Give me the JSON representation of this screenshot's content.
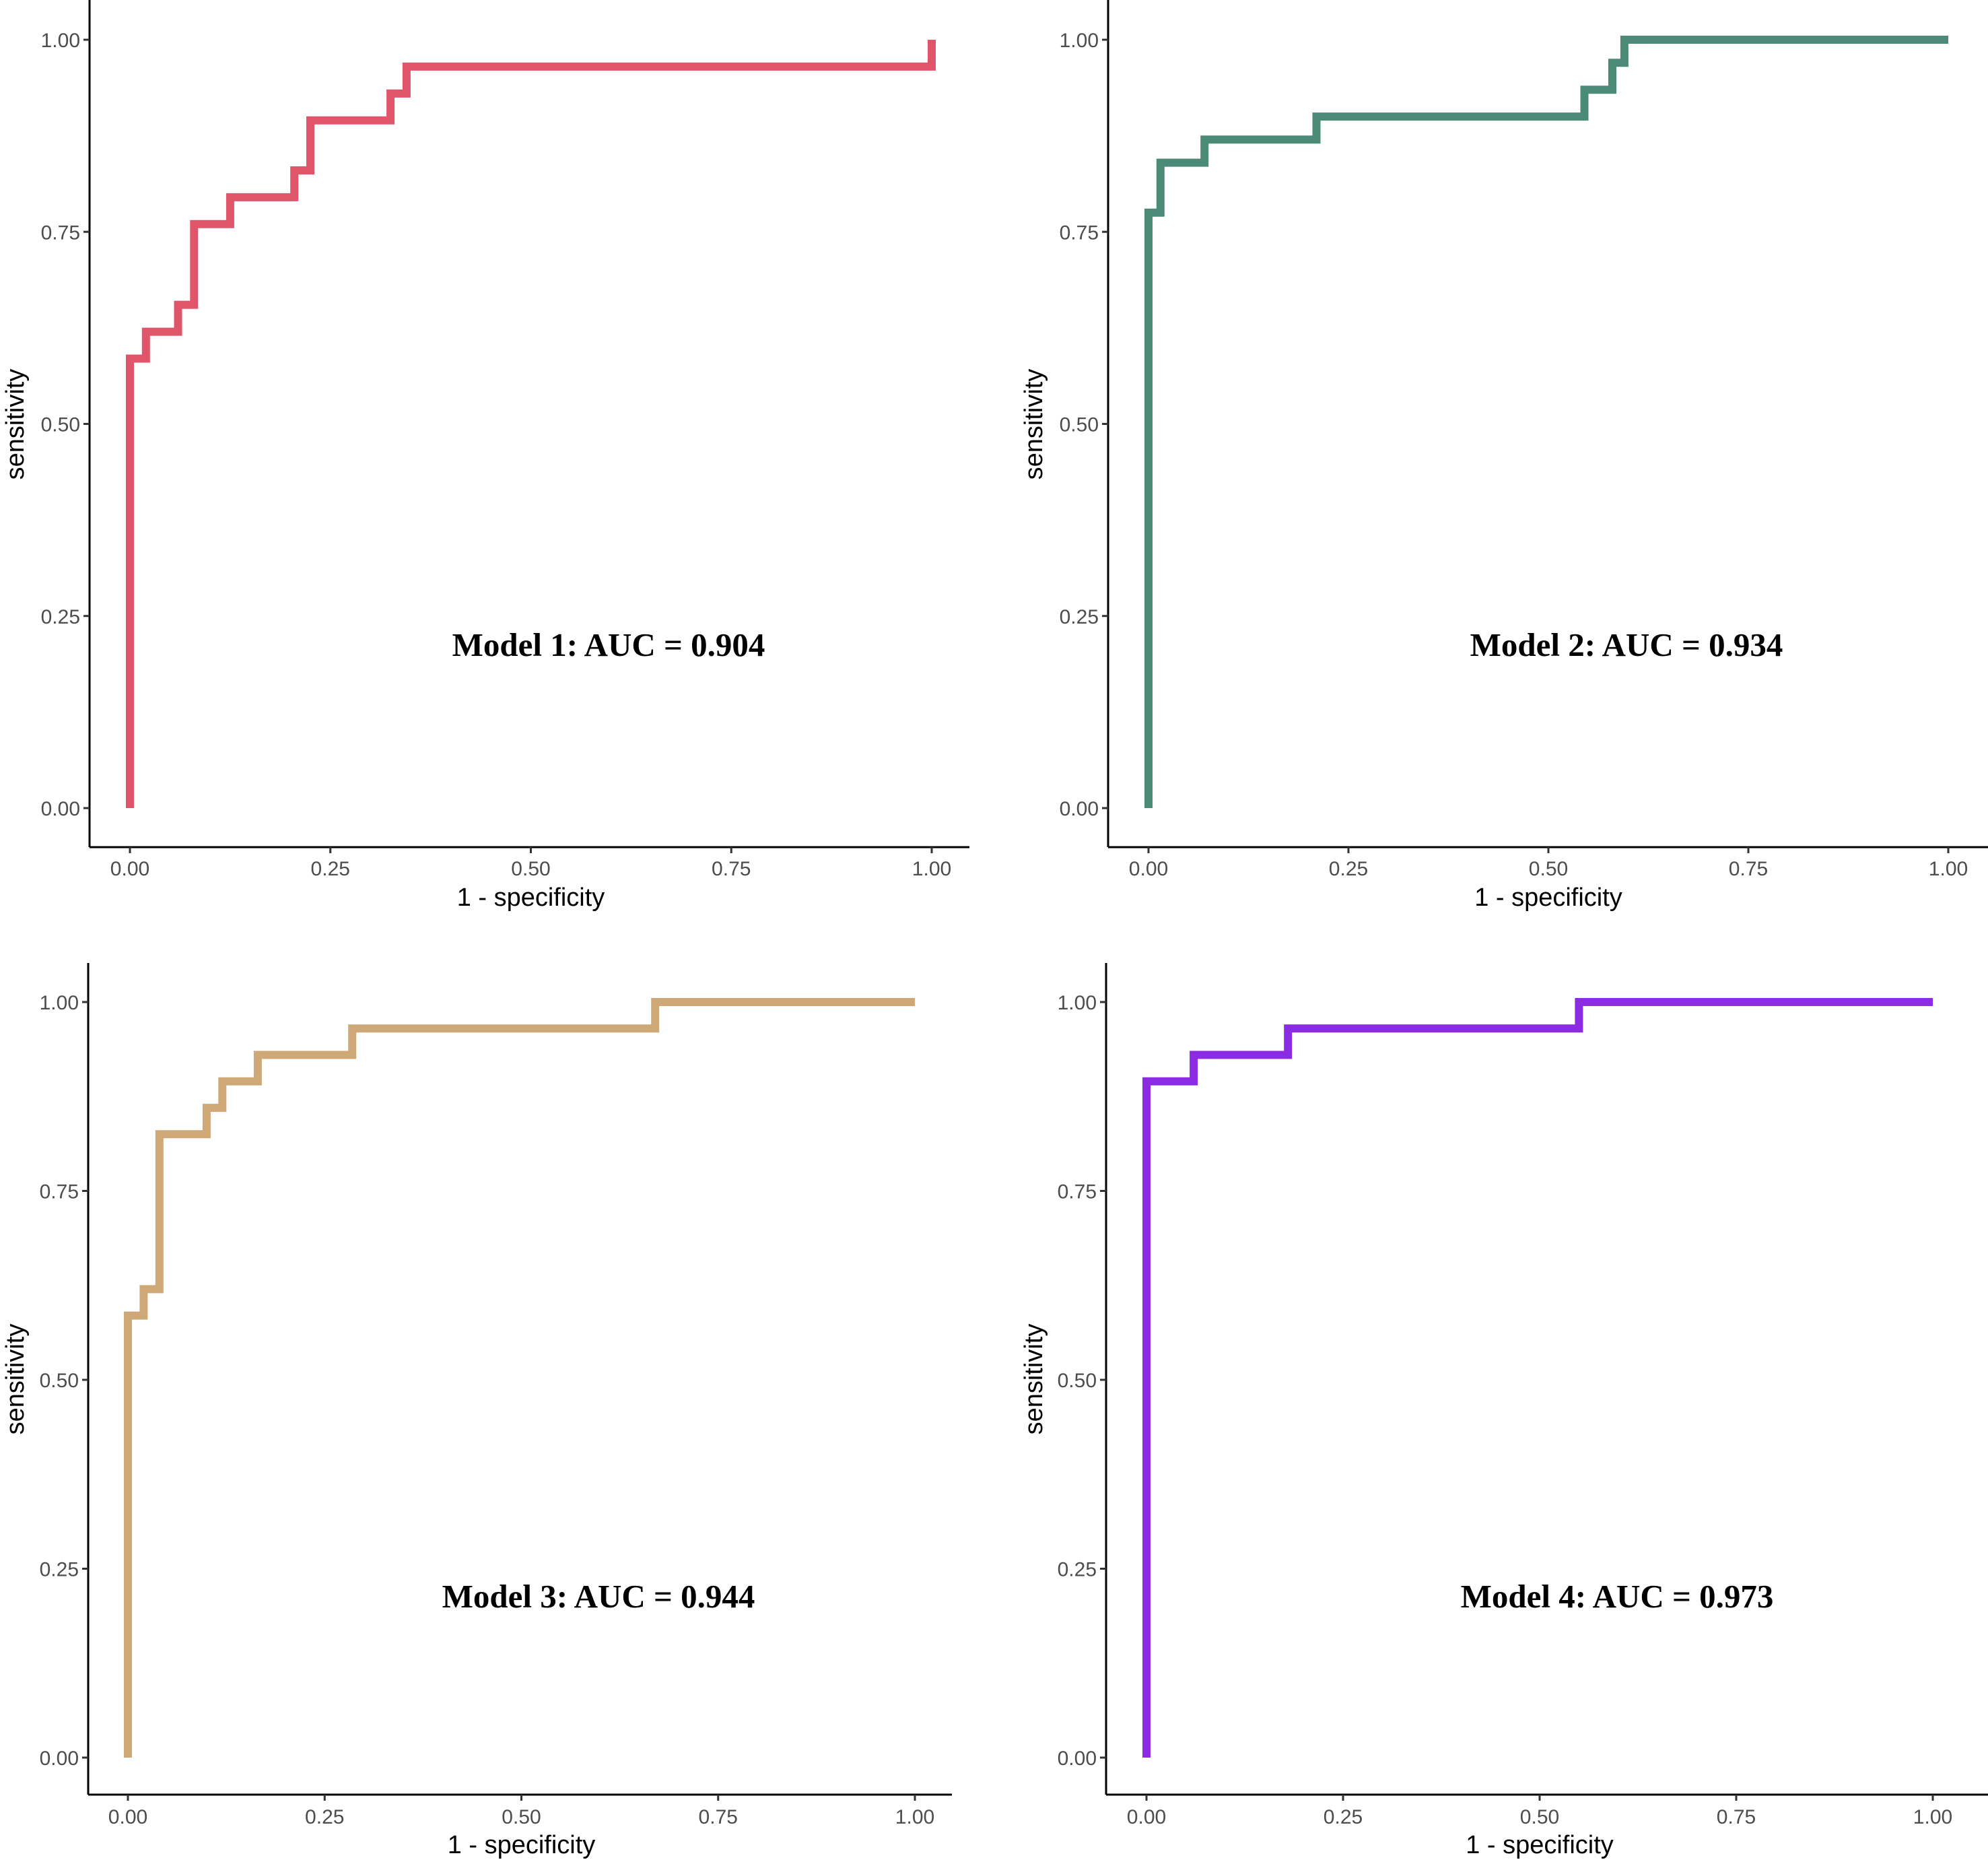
{
  "chart_data": [
    {
      "type": "line",
      "title": "",
      "xlabel": "1 - specificity",
      "ylabel": "sensitivity",
      "xlim": [
        0,
        1
      ],
      "ylim": [
        0,
        1
      ],
      "xticks": [
        "0.00",
        "0.25",
        "0.50",
        "0.75",
        "1.00"
      ],
      "yticks": [
        "0.00",
        "0.25",
        "0.50",
        "0.75",
        "1.00"
      ],
      "annotation": "Model 1: AUC = 0.904",
      "color": "#e05569",
      "series": [
        {
          "name": "Model 1",
          "x": [
            0.0,
            0.0,
            0.02,
            0.02,
            0.06,
            0.06,
            0.08,
            0.08,
            0.125,
            0.125,
            0.205,
            0.205,
            0.225,
            0.225,
            0.325,
            0.325,
            0.345,
            0.345,
            1.0,
            1.0
          ],
          "y": [
            0.0,
            0.585,
            0.585,
            0.62,
            0.62,
            0.655,
            0.655,
            0.76,
            0.76,
            0.795,
            0.795,
            0.83,
            0.83,
            0.895,
            0.895,
            0.93,
            0.93,
            0.965,
            0.965,
            1.0
          ]
        }
      ]
    },
    {
      "type": "line",
      "title": "",
      "xlabel": "1 - specificity",
      "ylabel": "sensitivity",
      "xlim": [
        0,
        1
      ],
      "ylim": [
        0,
        1
      ],
      "xticks": [
        "0.00",
        "0.25",
        "0.50",
        "0.75",
        "1.00"
      ],
      "yticks": [
        "0.00",
        "0.25",
        "0.50",
        "0.75",
        "1.00"
      ],
      "annotation": "Model 2: AUC = 0.934",
      "color": "#4a8a76",
      "series": [
        {
          "name": "Model 2",
          "x": [
            0.0,
            0.0,
            0.015,
            0.015,
            0.07,
            0.07,
            0.21,
            0.21,
            0.545,
            0.545,
            0.58,
            0.58,
            0.595,
            0.595,
            1.0
          ],
          "y": [
            0.0,
            0.775,
            0.775,
            0.84,
            0.84,
            0.87,
            0.87,
            0.9,
            0.9,
            0.935,
            0.935,
            0.97,
            0.97,
            1.0,
            1.0
          ]
        }
      ]
    },
    {
      "type": "line",
      "title": "",
      "xlabel": "1 - specificity",
      "ylabel": "sensitivity",
      "xlim": [
        0,
        1
      ],
      "ylim": [
        0,
        1
      ],
      "xticks": [
        "0.00",
        "0.25",
        "0.50",
        "0.75",
        "1.00"
      ],
      "yticks": [
        "0.00",
        "0.25",
        "0.50",
        "0.75",
        "1.00"
      ],
      "annotation": "Model 3: AUC = 0.944",
      "color": "#cfa878",
      "series": [
        {
          "name": "Model 3",
          "x": [
            0.0,
            0.0,
            0.02,
            0.02,
            0.04,
            0.04,
            0.1,
            0.1,
            0.12,
            0.12,
            0.165,
            0.165,
            0.285,
            0.285,
            0.67,
            0.67,
            1.0
          ],
          "y": [
            0.0,
            0.585,
            0.585,
            0.62,
            0.62,
            0.825,
            0.825,
            0.86,
            0.86,
            0.895,
            0.895,
            0.93,
            0.93,
            0.965,
            0.965,
            1.0,
            1.0
          ]
        }
      ]
    },
    {
      "type": "line",
      "title": "",
      "xlabel": "1 - specificity",
      "ylabel": "sensitivity",
      "xlim": [
        0,
        1
      ],
      "ylim": [
        0,
        1
      ],
      "xticks": [
        "0.00",
        "0.25",
        "0.50",
        "0.75",
        "1.00"
      ],
      "yticks": [
        "0.00",
        "0.25",
        "0.50",
        "0.75",
        "1.00"
      ],
      "annotation": "Model 4: AUC = 0.973",
      "color": "#8b2be2",
      "series": [
        {
          "name": "Model 4",
          "x": [
            0.0,
            0.0,
            0.06,
            0.06,
            0.18,
            0.18,
            0.55,
            0.55,
            1.0
          ],
          "y": [
            0.0,
            0.895,
            0.895,
            0.93,
            0.93,
            0.965,
            0.965,
            1.0,
            1.0
          ]
        }
      ]
    }
  ]
}
